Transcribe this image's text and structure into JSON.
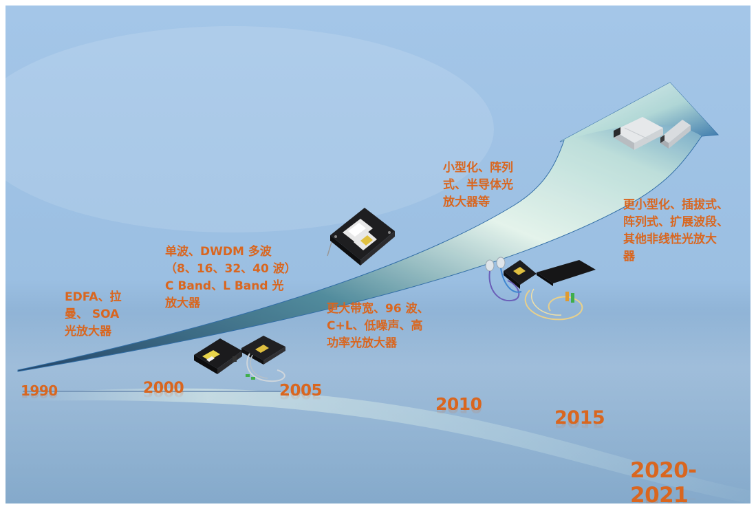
{
  "timeline": {
    "years": [
      "1990",
      "2000",
      "2005",
      "2010",
      "2015",
      "2020-2021"
    ]
  },
  "milestones": [
    {
      "lines": [
        "EDFA、拉",
        "曼、 SOA",
        "光放大器"
      ]
    },
    {
      "lines": [
        "单波、DWDM 多波",
        "（8、16、32、40 波）",
        "C Band、L Band 光",
        "放大器"
      ]
    },
    {
      "lines": [
        "更大带宽、96 波、",
        "C+L、低噪声、高",
        "功率光放大器"
      ]
    },
    {
      "lines": [
        "小型化、阵列",
        "式、半导体光",
        "放大器等"
      ]
    },
    {
      "lines": [
        "更小型化、插拔式、",
        "阵列式、扩展波段、",
        "其他非线性光放大",
        "器"
      ]
    }
  ],
  "colors": {
    "label": "#d9661f",
    "background_top": "#9fc3e6",
    "background_bottom": "#7fa6c9",
    "arrow_light": "#eaf5ee",
    "arrow_dark": "#2f6fa8"
  },
  "icons": [
    "edfa-module-black-icon",
    "edfa-module-fiber-icon",
    "pump-module-icon",
    "pigtail-module-icon",
    "planar-amplifier-icon",
    "cfp-transceiver-icon",
    "sfp-transceiver-icon"
  ]
}
